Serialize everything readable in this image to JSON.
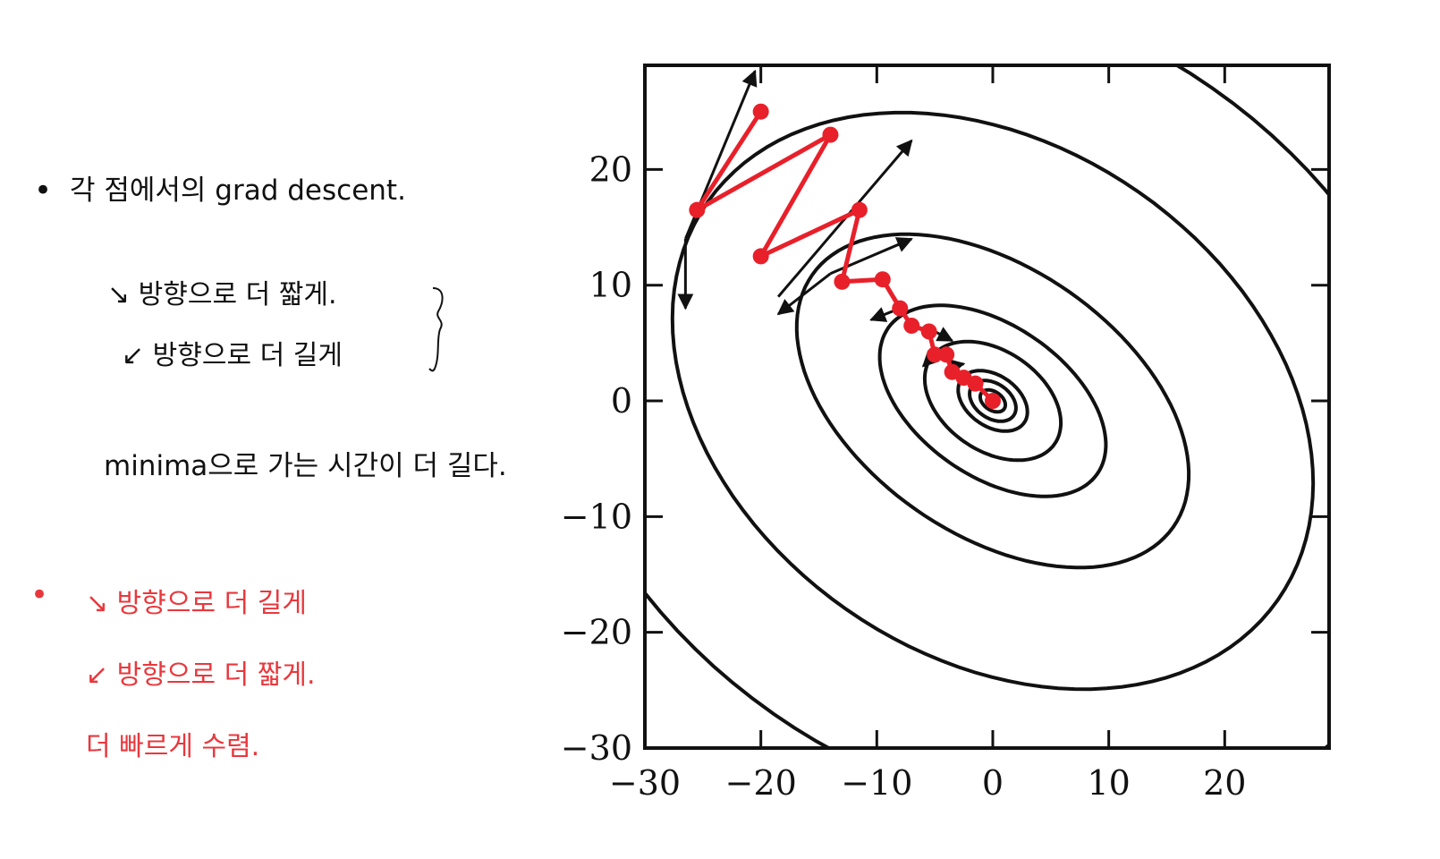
{
  "notes": {
    "black_lines": [
      "각 점에서의 grad descent.",
      "↘ 방향으로 더 짧게.",
      "↙ 방향으로 더 길게",
      "minima으로 가는 시간이 더 길다."
    ],
    "red_lines": [
      "↘ 방향으로 더 길게",
      "↙ 방향으로 더 짧게.",
      "더 빠르게 수렴."
    ],
    "colors": {
      "ink": "#111111",
      "red_ink": "#e8383d"
    }
  },
  "chart_data": {
    "type": "contour",
    "xlim": [
      -30,
      29
    ],
    "ylim": [
      -30,
      29
    ],
    "xticks": [
      -30,
      -20,
      -10,
      0,
      10,
      20
    ],
    "yticks": [
      -30,
      -20,
      -10,
      0,
      10,
      20
    ],
    "xtick_labels": [
      "−30",
      "−20",
      "−10",
      "0",
      "10",
      "20"
    ],
    "ytick_labels": [
      "−30",
      "−20",
      "−10",
      "0",
      "10",
      "20"
    ],
    "center": [
      0,
      0
    ],
    "contour_angle_deg": -35,
    "contours": [
      {
        "a": 1.2,
        "b": 0.8
      },
      {
        "a": 2.2,
        "b": 1.5
      },
      {
        "a": 3.3,
        "b": 2.2
      },
      {
        "a": 6.5,
        "b": 4.3
      },
      {
        "a": 11,
        "b": 6.5
      },
      {
        "a": 19,
        "b": 11.5
      },
      {
        "a": 30,
        "b": 22
      },
      {
        "a": 42,
        "b": 33
      }
    ],
    "path_color": "#e8202a",
    "path": [
      [
        -20,
        25
      ],
      [
        -25.5,
        16.5
      ],
      [
        -14,
        23
      ],
      [
        -20,
        12.5
      ],
      [
        -11.5,
        16.5
      ],
      [
        -13,
        10.3
      ],
      [
        -9.5,
        10.5
      ],
      [
        -8,
        8
      ],
      [
        -7,
        6.5
      ],
      [
        -5.5,
        6
      ],
      [
        -5,
        4
      ],
      [
        -4,
        4
      ],
      [
        -3.5,
        2.5
      ],
      [
        -2.5,
        2
      ],
      [
        -1.5,
        1.5
      ],
      [
        0,
        0
      ]
    ],
    "arrows": [
      {
        "from": [
          -26.5,
          14
        ],
        "to": [
          -20.5,
          28.5
        ]
      },
      {
        "from": [
          -26.5,
          14
        ],
        "to": [
          -26.5,
          8
        ]
      },
      {
        "from": [
          -18.5,
          9
        ],
        "to": [
          -7,
          22.5
        ]
      },
      {
        "from": [
          -14,
          11
        ],
        "to": [
          -7,
          14
        ]
      },
      {
        "from": [
          -14,
          11
        ],
        "to": [
          -18.5,
          7.5
        ]
      },
      {
        "from": [
          -8,
          8
        ],
        "to": [
          -10.5,
          7
        ]
      },
      {
        "from": [
          -5,
          6
        ],
        "to": [
          -3.5,
          5.2
        ]
      },
      {
        "from": [
          -5,
          4
        ],
        "to": [
          -6,
          3
        ]
      },
      {
        "from": [
          -3.5,
          3
        ],
        "to": [
          -2.5,
          3.2
        ]
      }
    ]
  }
}
